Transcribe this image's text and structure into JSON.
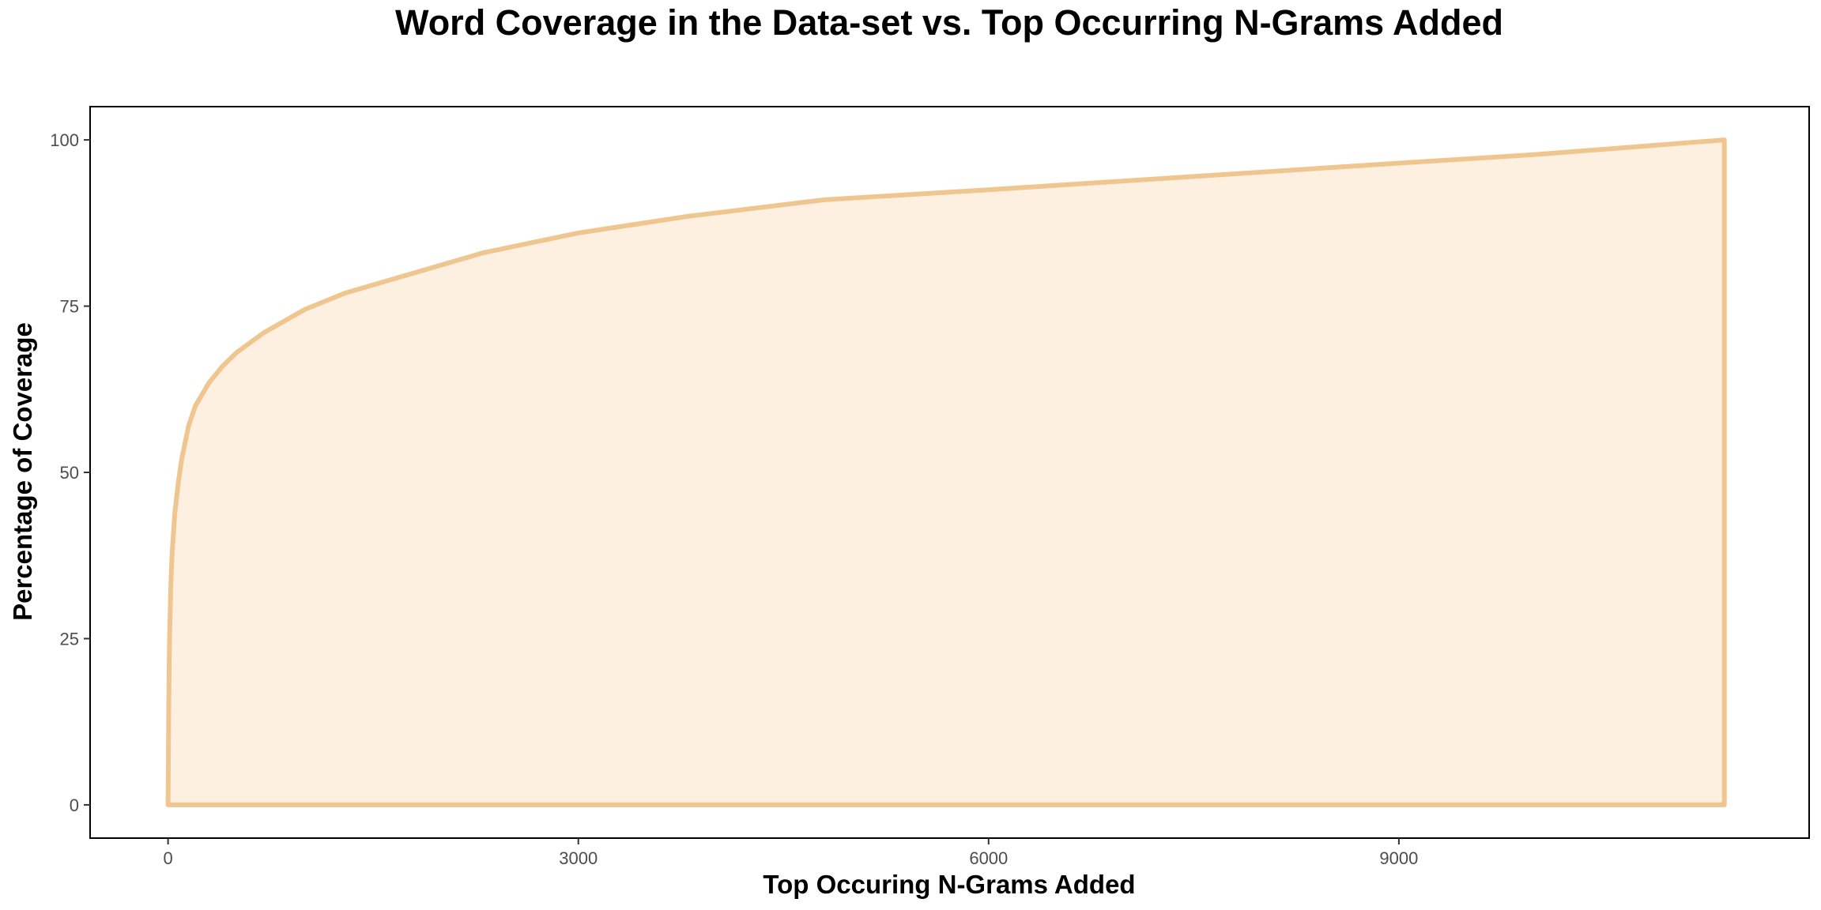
{
  "chart_data": {
    "type": "area",
    "title": "Word Coverage in the Data-set vs. Top Occurring N-Grams Added",
    "xlabel": "Top Occuring N-Grams Added",
    "ylabel": "Percentage of Coverage",
    "xlim": [
      -570,
      12000
    ],
    "ylim": [
      -5,
      105
    ],
    "x_ticks": [
      0,
      3000,
      6000,
      9000
    ],
    "x_tick_labels": [
      "0",
      "3000",
      "6000",
      "9000"
    ],
    "y_ticks": [
      0,
      25,
      50,
      75,
      100
    ],
    "y_tick_labels": [
      "0",
      "25",
      "50",
      "75",
      "100"
    ],
    "grid": false,
    "fill_color": "#fdf0e0",
    "line_color": "#f0c690",
    "series": [
      {
        "x": [
          0,
          5,
          10,
          20,
          30,
          50,
          75,
          100,
          150,
          200,
          300,
          400,
          500,
          700,
          1000,
          1300,
          1800,
          2300,
          3000,
          3800,
          4800,
          6000,
          7500,
          9000,
          10000,
          11380
        ],
        "y": [
          0,
          15,
          24,
          33,
          38,
          44,
          48.5,
          52,
          57,
          60,
          63.5,
          66,
          68,
          71,
          74.5,
          77,
          80,
          83,
          86,
          88.5,
          91,
          92.5,
          94.5,
          96.5,
          97.8,
          100
        ]
      }
    ]
  }
}
